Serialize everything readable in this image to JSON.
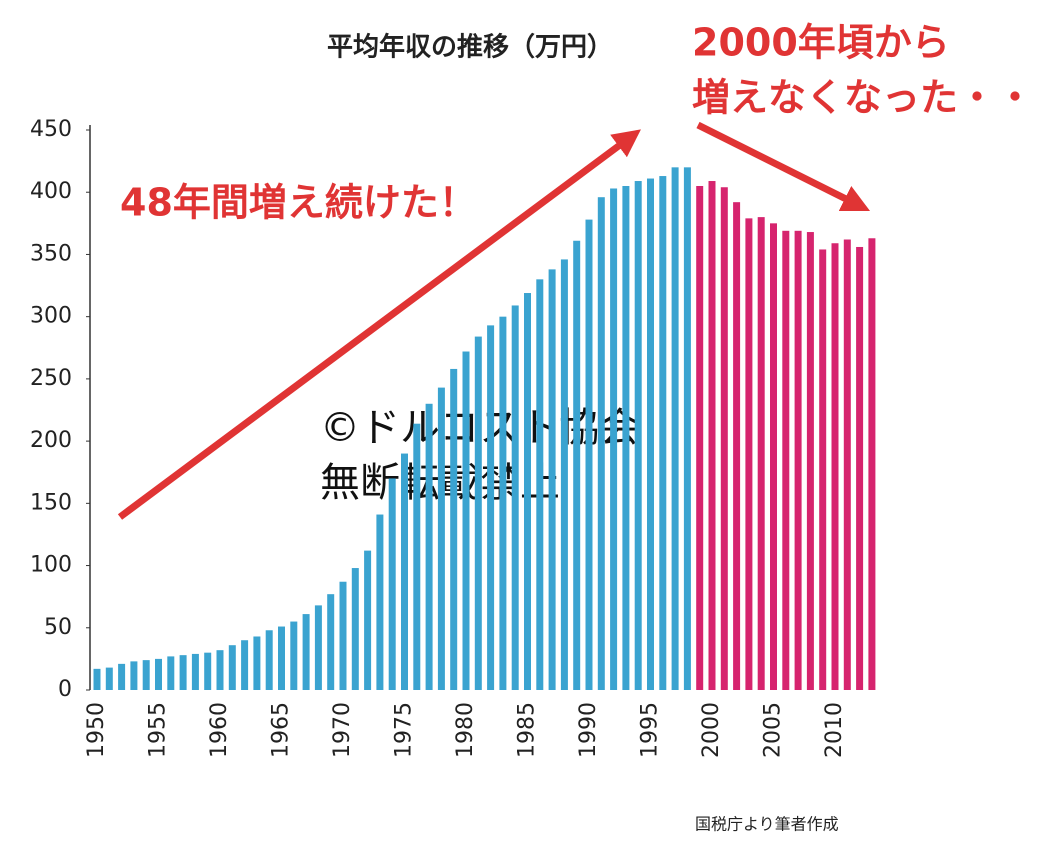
{
  "chart_data": {
    "type": "bar",
    "title": "平均年収の推移（万円）",
    "annotations": [
      "48年間増え続けた！",
      "2000年頃から",
      "増えなくなった・・・",
      "©ドルコスト協会",
      "無断転載禁止"
    ],
    "source": "国税庁より筆者作成",
    "categories": [
      "1950",
      null,
      null,
      null,
      null,
      "1955",
      null,
      null,
      null,
      null,
      "1960",
      null,
      null,
      null,
      null,
      "1965",
      null,
      null,
      null,
      null,
      "1970",
      null,
      null,
      null,
      null,
      "1975",
      null,
      null,
      null,
      null,
      "1980",
      null,
      null,
      null,
      null,
      "1985",
      null,
      null,
      null,
      null,
      "1990",
      null,
      null,
      null,
      null,
      "1995",
      null,
      null,
      null,
      null,
      "2000",
      null,
      null,
      null,
      null,
      "2005",
      null,
      null,
      null,
      null,
      "2010",
      null,
      null,
      null
    ],
    "series": [
      {
        "color": "#3aa3d0",
        "values": [
          17,
          18,
          21,
          23,
          24,
          25,
          27,
          28,
          29,
          30,
          32,
          36,
          40,
          43,
          48,
          51,
          55,
          61,
          68,
          77,
          87,
          98,
          112,
          141,
          170,
          190,
          214,
          230,
          243,
          258,
          272,
          284,
          293,
          300,
          309,
          319,
          330,
          338,
          346,
          361,
          378,
          396,
          403,
          405,
          409,
          411,
          413,
          420,
          420,
          null,
          null,
          null,
          null,
          null,
          null,
          null,
          null,
          null,
          null,
          null,
          null,
          null,
          null,
          null
        ]
      },
      {
        "color": "#d6246e",
        "values": [
          null,
          null,
          null,
          null,
          null,
          null,
          null,
          null,
          null,
          null,
          null,
          null,
          null,
          null,
          null,
          null,
          null,
          null,
          null,
          null,
          null,
          null,
          null,
          null,
          null,
          null,
          null,
          null,
          null,
          null,
          null,
          null,
          null,
          null,
          null,
          null,
          null,
          null,
          null,
          null,
          null,
          null,
          null,
          null,
          null,
          null,
          null,
          null,
          null,
          405,
          409,
          404,
          392,
          379,
          380,
          375,
          369,
          369,
          368,
          354,
          359,
          362,
          356,
          363
        ]
      }
    ],
    "ylim": [
      0,
      450
    ],
    "yticks": [
      0,
      50,
      100,
      150,
      200,
      250,
      300,
      350,
      400,
      450
    ],
    "grid": false
  }
}
